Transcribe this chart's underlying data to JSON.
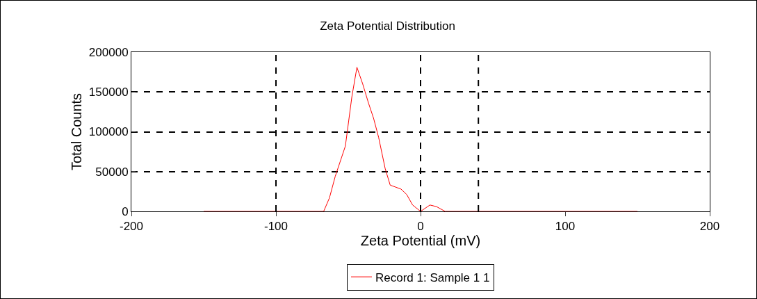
{
  "chart_data": {
    "type": "line",
    "title": "Zeta Potential Distribution",
    "xlabel": "Zeta Potential (mV)",
    "ylabel": "Total Counts",
    "xlim": [
      -200,
      200
    ],
    "xticks": [
      -200,
      -100,
      0,
      100,
      200
    ],
    "ylim": [
      0,
      200000
    ],
    "yticks": [
      0,
      50000,
      100000,
      150000,
      200000
    ],
    "grid": "y",
    "legend": "bottom",
    "marker": "none",
    "line_style": "solid",
    "ref_lines": [
      {
        "axis": "x",
        "value": -100,
        "color": "#000000",
        "line_style": "dashed"
      },
      {
        "axis": "x",
        "value": 0,
        "color": "#000000",
        "line_style": "dashed"
      },
      {
        "axis": "x",
        "value": 40,
        "color": "#000000",
        "line_style": "dashed"
      }
    ],
    "series": [
      {
        "name": "Record 1: Sample 1 1",
        "color": "#ff0000",
        "x": [
          -150,
          -67,
          -63,
          -59,
          -52,
          -47.5,
          -44,
          -40,
          -36,
          -32.5,
          -29,
          -24.5,
          -21,
          -13.5,
          -9.5,
          -5.5,
          0,
          6.5,
          11,
          17,
          150
        ],
        "values": [
          0,
          0,
          17000,
          44000,
          82000,
          144000,
          181000,
          160000,
          136000,
          117000,
          93000,
          54000,
          33000,
          28000,
          21000,
          8000,
          0,
          8000,
          6000,
          0,
          0
        ]
      }
    ]
  }
}
